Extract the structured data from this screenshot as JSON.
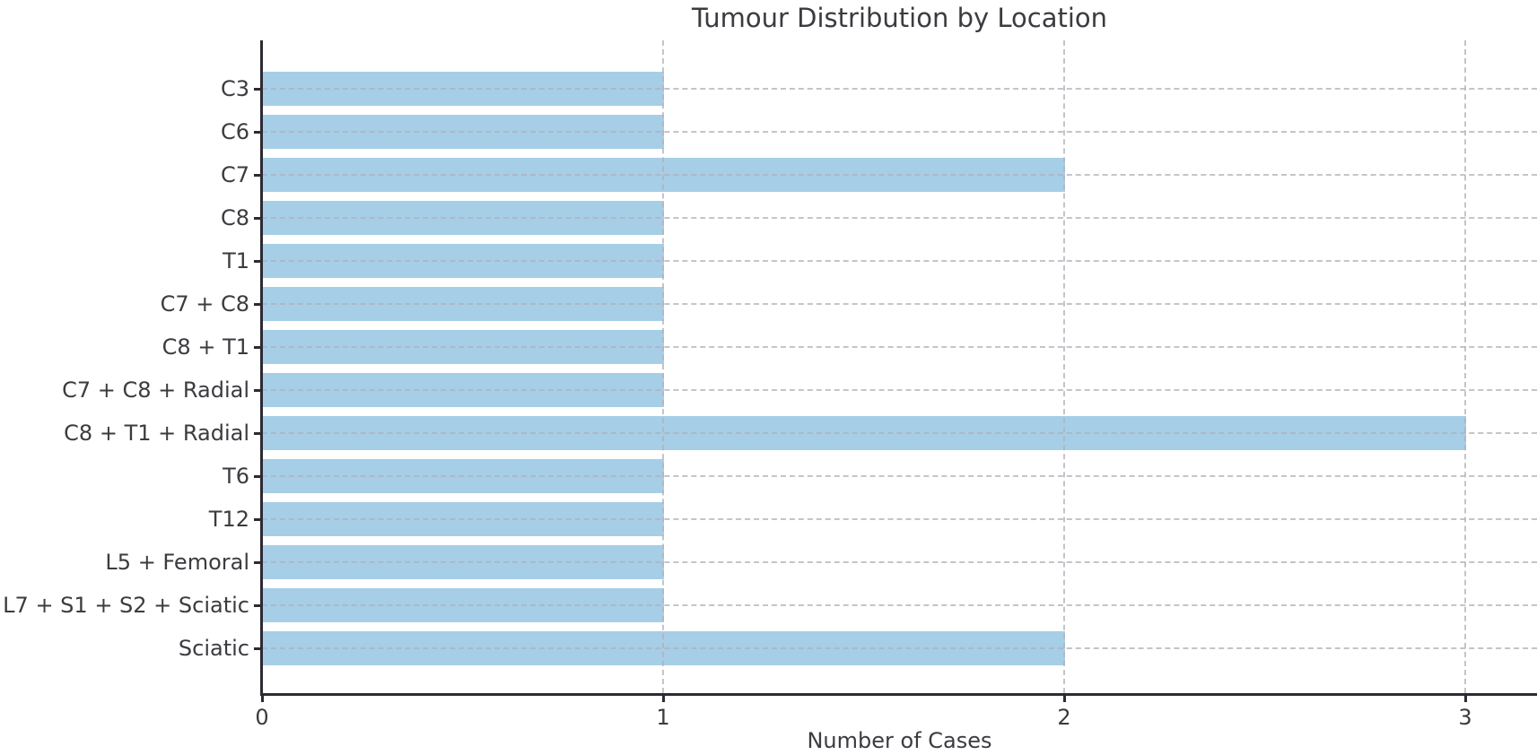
{
  "chart_data": {
    "type": "bar",
    "orientation": "horizontal",
    "title": "Tumour Distribution by Location",
    "xlabel": "Number of Cases",
    "ylabel": "",
    "categories": [
      "C3",
      "C6",
      "C7",
      "C8",
      "T1",
      "C7 + C8",
      "C8 + T1",
      "C7 + C8 + Radial",
      "C8 + T1 + Radial",
      "T6",
      "T12",
      "L5 + Femoral",
      "L7 + S1 + S2 + Sciatic",
      "Sciatic"
    ],
    "values": [
      1,
      1,
      2,
      1,
      1,
      1,
      1,
      1,
      3,
      1,
      1,
      1,
      1,
      2
    ],
    "x_ticks": [
      0,
      1,
      2,
      3
    ],
    "xlim": [
      0,
      3.18
    ],
    "grid": "dashed, both axes",
    "legend": "none",
    "colors": {
      "bar": "#a6cee7",
      "spine": "#2b2b33",
      "grid": "#b0b0b8",
      "text": "#3b3b40",
      "background": "#ffffff"
    }
  }
}
